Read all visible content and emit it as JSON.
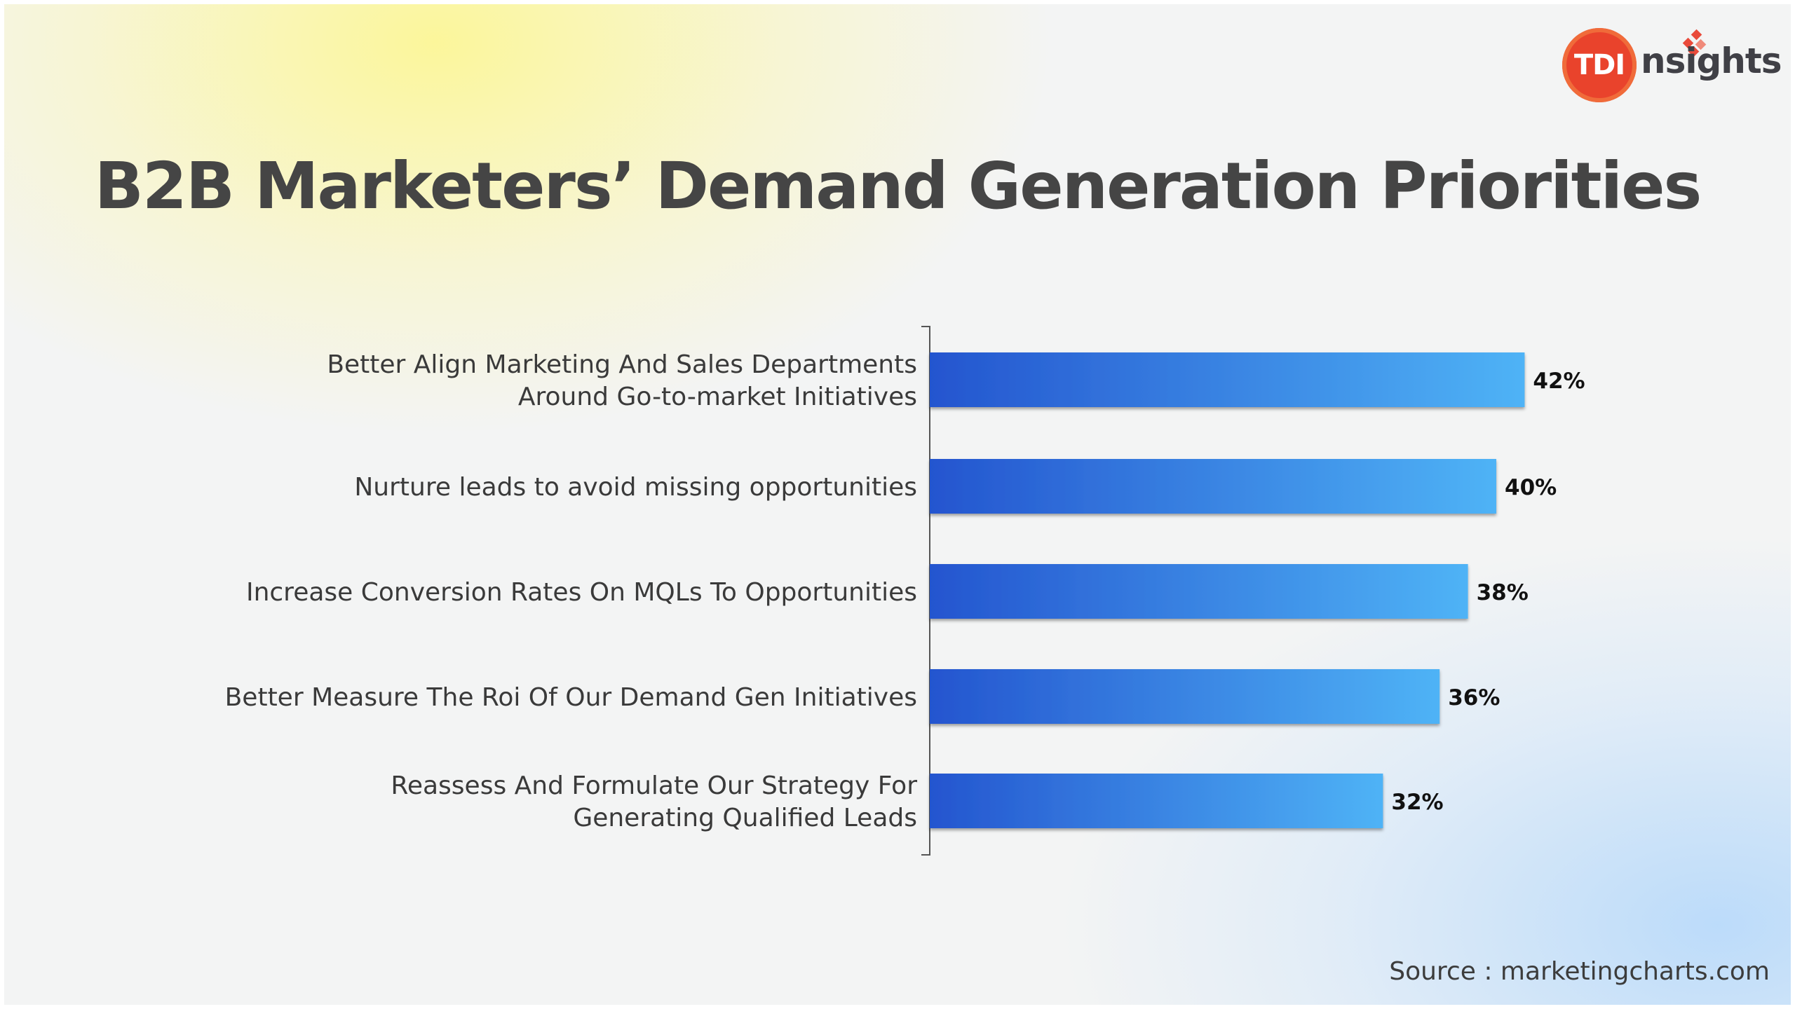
{
  "title": "B2B Marketers’ Demand Generation Priorities",
  "logo": {
    "badge_text": "TDI",
    "word_text": "nsights"
  },
  "source": "Source : marketingcharts.com",
  "colors": {
    "bar_start": "#2455cf",
    "bar_end": "#4fb3f6",
    "axis": "#555555",
    "label_text": "#3a3a3a",
    "value_text": "#111111",
    "title_text": "#454545"
  },
  "chart_data": {
    "type": "bar",
    "orientation": "horizontal",
    "categories": [
      [
        "Better Align Marketing And Sales Departments",
        "Around Go-to-market Initiatives"
      ],
      [
        "Nurture leads to avoid missing opportunities"
      ],
      [
        "Increase Conversion Rates On MQLs To Opportunities"
      ],
      [
        "Better Measure The Roi Of Our Demand Gen Initiatives"
      ],
      [
        "Reassess And Formulate Our Strategy For",
        "Generating Qualified Leads"
      ]
    ],
    "values": [
      42,
      40,
      38,
      36,
      32
    ],
    "value_labels": [
      "42%",
      "40%",
      "38%",
      "36%",
      "32%"
    ],
    "unit": "%",
    "xlim": [
      0,
      100
    ],
    "grid": false,
    "legend": "none"
  }
}
